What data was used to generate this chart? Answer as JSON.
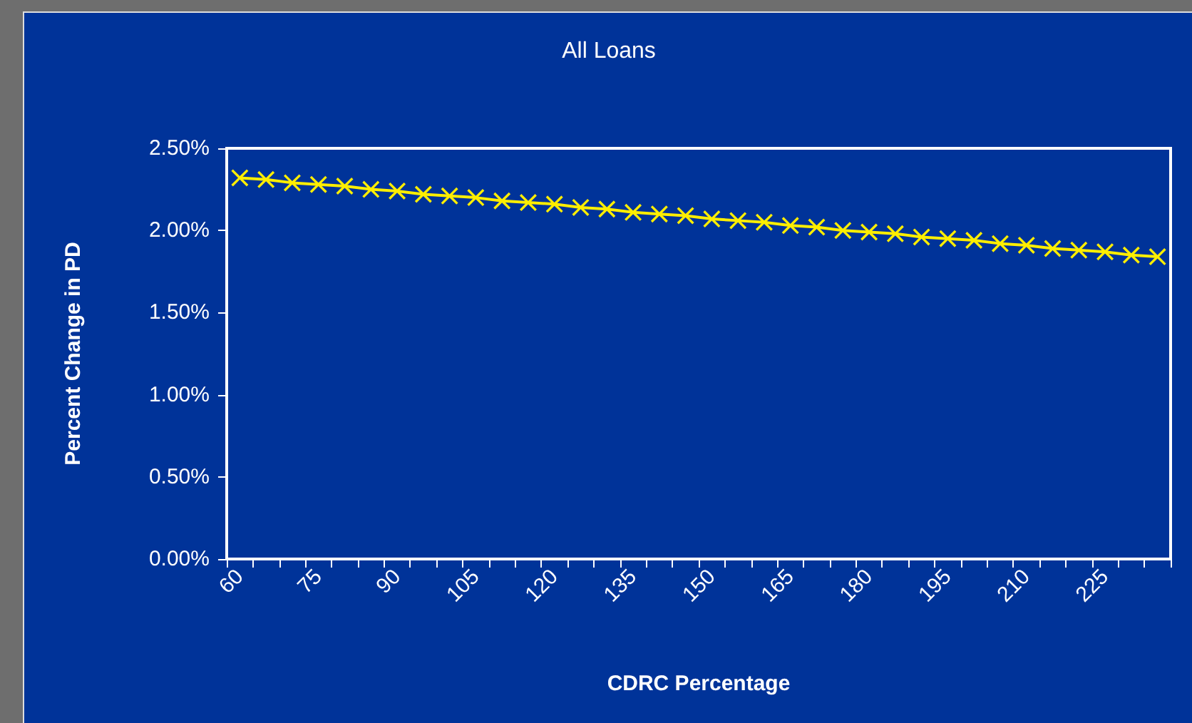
{
  "chart_data": {
    "type": "line",
    "title": "All Loans",
    "xlabel": "CDRC Percentage",
    "ylabel": "Percent Change in PD",
    "categories": [
      "60",
      null,
      null,
      "75",
      null,
      null,
      "90",
      null,
      null,
      "105",
      null,
      null,
      "120",
      null,
      null,
      "135",
      null,
      null,
      "150",
      null,
      null,
      "165",
      null,
      null,
      "180",
      null,
      null,
      "195",
      null,
      null,
      "210",
      null,
      null,
      "225",
      null,
      null
    ],
    "series": [
      {
        "color": "#ffee00",
        "values": [
          2.32,
          2.31,
          2.29,
          2.28,
          2.27,
          2.25,
          2.24,
          2.22,
          2.21,
          2.2,
          2.18,
          2.17,
          2.16,
          2.14,
          2.13,
          2.11,
          2.1,
          2.09,
          2.07,
          2.06,
          2.05,
          2.03,
          2.02,
          2.0,
          1.99,
          1.98,
          1.96,
          1.95,
          1.94,
          1.92,
          1.91,
          1.89,
          1.88,
          1.87,
          1.85,
          1.84
        ]
      }
    ],
    "ylim": [
      0,
      2.5
    ],
    "yticks": [
      {
        "value": 0,
        "label": "0.00%"
      },
      {
        "value": 0.5,
        "label": "0.50%"
      },
      {
        "value": 1,
        "label": "1.00%"
      },
      {
        "value": 1.5,
        "label": "1.50%"
      },
      {
        "value": 2,
        "label": "2.00%"
      },
      {
        "value": 2.5,
        "label": "2.50%"
      }
    ],
    "marker": "cross",
    "line_style": "solid",
    "grid": false
  }
}
